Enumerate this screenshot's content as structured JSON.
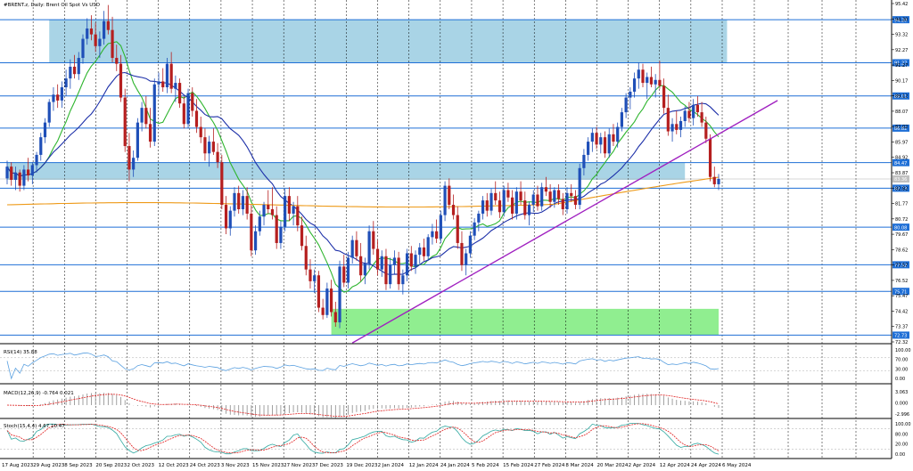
{
  "chart_data": {
    "type": "candlestick",
    "symbol_title": "#BRENT.z, Daily:  Brent Oil Spot Vs USD",
    "y_axis": {
      "min": 72.27,
      "max": 95.42,
      "tick_labels": [
        "95.42",
        "94.30",
        "93.32",
        "92.27",
        "91.27",
        "90.17",
        "89.12",
        "88.07",
        "87.02",
        "85.97",
        "84.92",
        "83.87",
        "82.82",
        "81.77",
        "80.72",
        "79.67",
        "78.62",
        "77.57",
        "76.52",
        "75.47",
        "74.42",
        "73.37",
        "72.32"
      ],
      "price_label": "83.36"
    },
    "x_axis": {
      "date_labels": [
        "17 Aug 2023",
        "29 Aug 2023",
        "8 Sep 2023",
        "20 Sep 2023",
        "2 Oct 2023",
        "12 Oct 2023",
        "24 Oct 2023",
        "3 Nov 2023",
        "15 Nov 2023",
        "27 Nov 2023",
        "7 Dec 2023",
        "19 Dec 2023",
        "2 Jan 2024",
        "12 Jan 2024",
        "24 Jan 2024",
        "5 Feb 2024",
        "15 Feb 2024",
        "27 Feb 2024",
        "8 Mar 2024",
        "20 Mar 2024",
        "2 Apr 2024",
        "12 Apr 2024",
        "24 Apr 2024",
        "6 May 2024"
      ]
    },
    "horizontal_levels": [
      {
        "label": "94.20",
        "value": 94.2
      },
      {
        "label": "91.27",
        "value": 91.27
      },
      {
        "label": "89.01",
        "value": 89.01
      },
      {
        "label": "86.82",
        "value": 86.82
      },
      {
        "label": "84.47",
        "value": 84.47
      },
      {
        "label": "82.73",
        "value": 82.73
      },
      {
        "label": "80.08",
        "value": 80.08
      },
      {
        "label": "77.52",
        "value": 77.52
      },
      {
        "label": "75.71",
        "value": 75.71
      },
      {
        "label": "72.73",
        "value": 72.73
      }
    ],
    "zones": [
      {
        "name": "blue-upper",
        "color": "#a9d4e6",
        "x_from_bar": 10,
        "x_to_bar": 171,
        "y_top": 94.2,
        "y_bottom": 91.27
      },
      {
        "name": "blue-middle",
        "color": "#a9d4e6",
        "x_from_bar": 0,
        "x_to_bar": 161,
        "y_top": 84.47,
        "y_bottom": 83.3
      },
      {
        "name": "green-lower",
        "color": "#90ee90",
        "x_from_bar": 77,
        "x_to_bar": 169,
        "y_top": 74.52,
        "y_bottom": 72.73
      }
    ],
    "trendlines": [
      {
        "color": "#a020c0",
        "from": {
          "bar": 82,
          "price": 72.2
        },
        "to": {
          "bar": 183,
          "price": 88.7
        }
      }
    ],
    "ohlc": [
      [
        83.4,
        84.6,
        83.0,
        84.2
      ],
      [
        84.2,
        84.5,
        82.9,
        83.3
      ],
      [
        83.3,
        84.2,
        82.6,
        83.8
      ],
      [
        83.8,
        84.0,
        82.5,
        82.9
      ],
      [
        82.9,
        84.3,
        82.6,
        84.0
      ],
      [
        84.0,
        84.8,
        83.2,
        83.6
      ],
      [
        83.6,
        84.5,
        83.0,
        84.3
      ],
      [
        84.3,
        85.2,
        83.8,
        85.0
      ],
      [
        85.0,
        86.5,
        84.6,
        86.2
      ],
      [
        86.2,
        87.5,
        85.8,
        87.2
      ],
      [
        87.2,
        88.8,
        86.9,
        88.6
      ],
      [
        88.6,
        89.6,
        88.0,
        89.1
      ],
      [
        89.1,
        89.8,
        88.2,
        88.7
      ],
      [
        88.7,
        90.0,
        88.2,
        89.6
      ],
      [
        89.6,
        90.8,
        89.0,
        90.2
      ],
      [
        90.2,
        91.5,
        89.5,
        91.0
      ],
      [
        91.0,
        91.8,
        90.2,
        90.5
      ],
      [
        90.5,
        92.0,
        90.1,
        91.6
      ],
      [
        91.6,
        93.2,
        91.2,
        92.9
      ],
      [
        92.9,
        94.3,
        92.5,
        93.6
      ],
      [
        93.6,
        94.5,
        92.8,
        93.2
      ],
      [
        93.2,
        94.0,
        92.0,
        92.4
      ],
      [
        92.4,
        93.4,
        91.6,
        92.9
      ],
      [
        92.9,
        94.8,
        92.5,
        94.1
      ],
      [
        94.1,
        95.2,
        93.2,
        93.5
      ],
      [
        93.5,
        94.4,
        91.3,
        91.6
      ],
      [
        91.6,
        92.5,
        90.7,
        91.2
      ],
      [
        91.2,
        91.8,
        88.6,
        88.9
      ],
      [
        88.9,
        89.5,
        85.2,
        85.6
      ],
      [
        85.6,
        86.5,
        83.2,
        84.0
      ],
      [
        84.0,
        85.3,
        83.5,
        84.8
      ],
      [
        84.8,
        87.5,
        84.6,
        87.2
      ],
      [
        87.2,
        88.6,
        86.6,
        88.2
      ],
      [
        88.2,
        89.0,
        86.8,
        87.1
      ],
      [
        87.1,
        88.2,
        85.5,
        85.9
      ],
      [
        85.9,
        90.2,
        85.6,
        89.8
      ],
      [
        89.8,
        90.6,
        89.0,
        90.0
      ],
      [
        90.0,
        90.9,
        89.3,
        89.6
      ],
      [
        89.6,
        91.6,
        89.2,
        91.2
      ],
      [
        91.2,
        92.0,
        89.2,
        89.5
      ],
      [
        89.5,
        90.4,
        88.6,
        89.9
      ],
      [
        89.9,
        90.2,
        88.2,
        88.5
      ],
      [
        88.5,
        89.0,
        86.8,
        87.1
      ],
      [
        87.1,
        89.5,
        86.8,
        89.2
      ],
      [
        89.2,
        89.6,
        87.6,
        88.0
      ],
      [
        88.0,
        88.8,
        86.5,
        86.9
      ],
      [
        86.9,
        87.6,
        85.8,
        86.2
      ],
      [
        86.2,
        86.8,
        84.6,
        85.1
      ],
      [
        85.1,
        86.3,
        84.2,
        85.9
      ],
      [
        85.9,
        86.8,
        85.0,
        85.2
      ],
      [
        85.2,
        85.8,
        84.1,
        84.5
      ],
      [
        84.5,
        85.0,
        81.3,
        81.6
      ],
      [
        81.6,
        82.2,
        79.6,
        80.0
      ],
      [
        80.0,
        81.5,
        79.5,
        81.2
      ],
      [
        81.2,
        82.8,
        80.8,
        82.4
      ],
      [
        82.4,
        82.9,
        81.0,
        81.3
      ],
      [
        81.3,
        82.6,
        80.9,
        82.2
      ],
      [
        82.2,
        82.8,
        80.6,
        81.0
      ],
      [
        81.0,
        81.6,
        78.1,
        78.5
      ],
      [
        78.5,
        80.2,
        78.2,
        79.8
      ],
      [
        79.8,
        81.2,
        79.5,
        80.8
      ],
      [
        80.8,
        81.8,
        80.2,
        81.6
      ],
      [
        81.6,
        82.6,
        81.0,
        81.3
      ],
      [
        81.3,
        82.8,
        80.6,
        80.9
      ],
      [
        80.9,
        81.5,
        78.6,
        79.0
      ],
      [
        79.0,
        80.5,
        78.6,
        80.1
      ],
      [
        80.1,
        82.7,
        79.8,
        82.2
      ],
      [
        82.2,
        82.8,
        80.5,
        81.0
      ],
      [
        81.0,
        81.8,
        80.2,
        81.5
      ],
      [
        81.5,
        82.2,
        79.8,
        80.2
      ],
      [
        80.2,
        80.8,
        78.5,
        78.8
      ],
      [
        78.8,
        79.5,
        76.8,
        77.2
      ],
      [
        77.2,
        77.9,
        75.9,
        76.4
      ],
      [
        76.4,
        77.2,
        75.6,
        76.8
      ],
      [
        76.8,
        77.1,
        74.3,
        74.6
      ],
      [
        74.6,
        75.2,
        73.8,
        74.1
      ],
      [
        74.1,
        76.3,
        73.9,
        75.9
      ],
      [
        75.9,
        76.5,
        74.0,
        74.3
      ],
      [
        74.3,
        75.0,
        73.3,
        73.6
      ],
      [
        73.6,
        77.8,
        73.2,
        77.4
      ],
      [
        77.4,
        78.2,
        76.0,
        76.3
      ],
      [
        76.3,
        78.4,
        75.9,
        78.0
      ],
      [
        78.0,
        79.5,
        77.6,
        79.2
      ],
      [
        79.2,
        79.8,
        77.8,
        78.1
      ],
      [
        78.1,
        79.0,
        76.4,
        76.8
      ],
      [
        76.8,
        78.0,
        76.2,
        77.6
      ],
      [
        77.6,
        80.2,
        77.2,
        79.8
      ],
      [
        79.8,
        80.5,
        78.2,
        78.6
      ],
      [
        78.6,
        79.2,
        76.8,
        77.2
      ],
      [
        77.2,
        78.5,
        76.7,
        78.1
      ],
      [
        78.1,
        78.6,
        75.8,
        76.2
      ],
      [
        76.2,
        78.0,
        75.9,
        77.5
      ],
      [
        77.5,
        78.5,
        76.9,
        78.0
      ],
      [
        78.0,
        78.4,
        75.8,
        76.2
      ],
      [
        76.2,
        77.2,
        75.5,
        76.8
      ],
      [
        76.8,
        78.6,
        76.4,
        78.3
      ],
      [
        78.3,
        78.8,
        77.1,
        77.4
      ],
      [
        77.4,
        78.5,
        76.9,
        78.2
      ],
      [
        78.2,
        79.0,
        77.6,
        78.7
      ],
      [
        78.7,
        79.3,
        77.8,
        78.1
      ],
      [
        78.1,
        79.6,
        77.8,
        79.4
      ],
      [
        79.4,
        80.3,
        78.9,
        79.8
      ],
      [
        79.8,
        80.6,
        79.0,
        79.3
      ],
      [
        79.3,
        81.2,
        79.0,
        80.9
      ],
      [
        80.9,
        83.2,
        80.5,
        82.9
      ],
      [
        82.9,
        83.4,
        81.3,
        81.6
      ],
      [
        81.6,
        82.3,
        80.6,
        80.9
      ],
      [
        80.9,
        81.5,
        78.6,
        79.0
      ],
      [
        79.0,
        79.8,
        77.1,
        77.5
      ],
      [
        77.5,
        78.6,
        76.8,
        78.3
      ],
      [
        78.3,
        79.8,
        78.0,
        79.5
      ],
      [
        79.5,
        80.7,
        79.2,
        80.4
      ],
      [
        80.4,
        81.2,
        79.8,
        81.0
      ],
      [
        81.0,
        82.2,
        80.6,
        81.9
      ],
      [
        81.9,
        82.4,
        80.8,
        81.2
      ],
      [
        81.2,
        82.7,
        80.9,
        82.4
      ],
      [
        82.4,
        83.2,
        81.6,
        81.9
      ],
      [
        81.9,
        82.5,
        80.7,
        81.1
      ],
      [
        81.1,
        82.9,
        80.8,
        82.6
      ],
      [
        82.6,
        83.1,
        81.8,
        82.1
      ],
      [
        82.1,
        82.6,
        80.6,
        81.0
      ],
      [
        81.0,
        82.8,
        80.6,
        82.5
      ],
      [
        82.5,
        83.2,
        81.6,
        81.9
      ],
      [
        81.9,
        82.5,
        80.6,
        80.9
      ],
      [
        80.9,
        81.8,
        80.2,
        81.6
      ],
      [
        81.6,
        82.6,
        81.1,
        82.3
      ],
      [
        82.3,
        82.9,
        81.2,
        81.5
      ],
      [
        81.5,
        83.1,
        81.2,
        82.8
      ],
      [
        82.8,
        83.5,
        82.2,
        82.5
      ],
      [
        82.5,
        83.0,
        81.4,
        81.8
      ],
      [
        81.8,
        82.8,
        81.4,
        82.6
      ],
      [
        82.6,
        83.0,
        81.6,
        82.0
      ],
      [
        82.0,
        82.4,
        80.9,
        81.3
      ],
      [
        81.3,
        82.8,
        81.0,
        82.4
      ],
      [
        82.4,
        83.0,
        81.8,
        82.2
      ],
      [
        82.2,
        82.6,
        81.3,
        81.6
      ],
      [
        81.6,
        84.4,
        81.3,
        84.1
      ],
      [
        84.1,
        85.4,
        83.6,
        85.0
      ],
      [
        85.0,
        86.2,
        84.6,
        85.9
      ],
      [
        85.9,
        86.8,
        85.2,
        86.5
      ],
      [
        86.5,
        86.9,
        85.4,
        85.7
      ],
      [
        85.7,
        86.5,
        85.1,
        86.2
      ],
      [
        86.2,
        86.6,
        84.8,
        85.1
      ],
      [
        85.1,
        86.8,
        84.8,
        86.4
      ],
      [
        86.4,
        87.1,
        85.6,
        85.9
      ],
      [
        85.9,
        87.2,
        85.5,
        86.9
      ],
      [
        86.9,
        88.2,
        86.6,
        87.9
      ],
      [
        87.9,
        89.2,
        87.5,
        88.9
      ],
      [
        88.9,
        89.6,
        88.1,
        89.3
      ],
      [
        89.3,
        90.6,
        88.9,
        90.2
      ],
      [
        90.2,
        91.3,
        89.5,
        90.8
      ],
      [
        90.8,
        91.2,
        89.6,
        89.9
      ],
      [
        89.9,
        90.6,
        88.8,
        90.3
      ],
      [
        90.3,
        91.0,
        89.6,
        89.8
      ],
      [
        89.8,
        90.5,
        88.9,
        90.1
      ],
      [
        90.1,
        91.4,
        89.5,
        89.7
      ],
      [
        89.7,
        90.2,
        87.8,
        88.2
      ],
      [
        88.2,
        89.1,
        86.3,
        86.6
      ],
      [
        86.6,
        87.5,
        85.9,
        87.1
      ],
      [
        87.1,
        88.0,
        86.4,
        86.7
      ],
      [
        86.7,
        87.6,
        86.2,
        87.3
      ],
      [
        87.3,
        88.3,
        86.9,
        88.0
      ],
      [
        88.0,
        88.6,
        87.2,
        87.5
      ],
      [
        87.5,
        88.8,
        87.0,
        88.4
      ],
      [
        88.4,
        89.0,
        87.6,
        87.9
      ],
      [
        87.9,
        88.6,
        86.9,
        87.2
      ],
      [
        87.2,
        87.6,
        85.8,
        86.1
      ],
      [
        86.1,
        86.4,
        83.2,
        83.5
      ],
      [
        83.5,
        84.2,
        82.8,
        83.0
      ],
      [
        83.0,
        83.7,
        82.6,
        83.36
      ]
    ],
    "moving_averages": [
      {
        "name": "fast",
        "color": "#2fb52f",
        "period": 10
      },
      {
        "name": "mid",
        "color": "#1c2fa8",
        "period": 21
      },
      {
        "name": "slow",
        "color": "#ee9a18",
        "period": 100
      }
    ],
    "rsi": {
      "label": "RSI(14) 35.88",
      "levels": [
        "100.00",
        "70.00",
        "30.00",
        "0.00"
      ],
      "color": "#5aa0e0"
    },
    "macd": {
      "label": "MACD(12,26,9) -0.764 0.021",
      "levels": [
        "3.063",
        "0.000",
        "-2.996"
      ],
      "color": "#8a8a8a",
      "signal_color": "#e02020"
    },
    "stoch": {
      "label": "Stoch(15,4,4) 4.67 10.47",
      "levels": [
        "100.00",
        "80.00",
        "20.00",
        "0.00"
      ],
      "k_color": "#2fa8a0",
      "d_color": "#e02020"
    }
  }
}
